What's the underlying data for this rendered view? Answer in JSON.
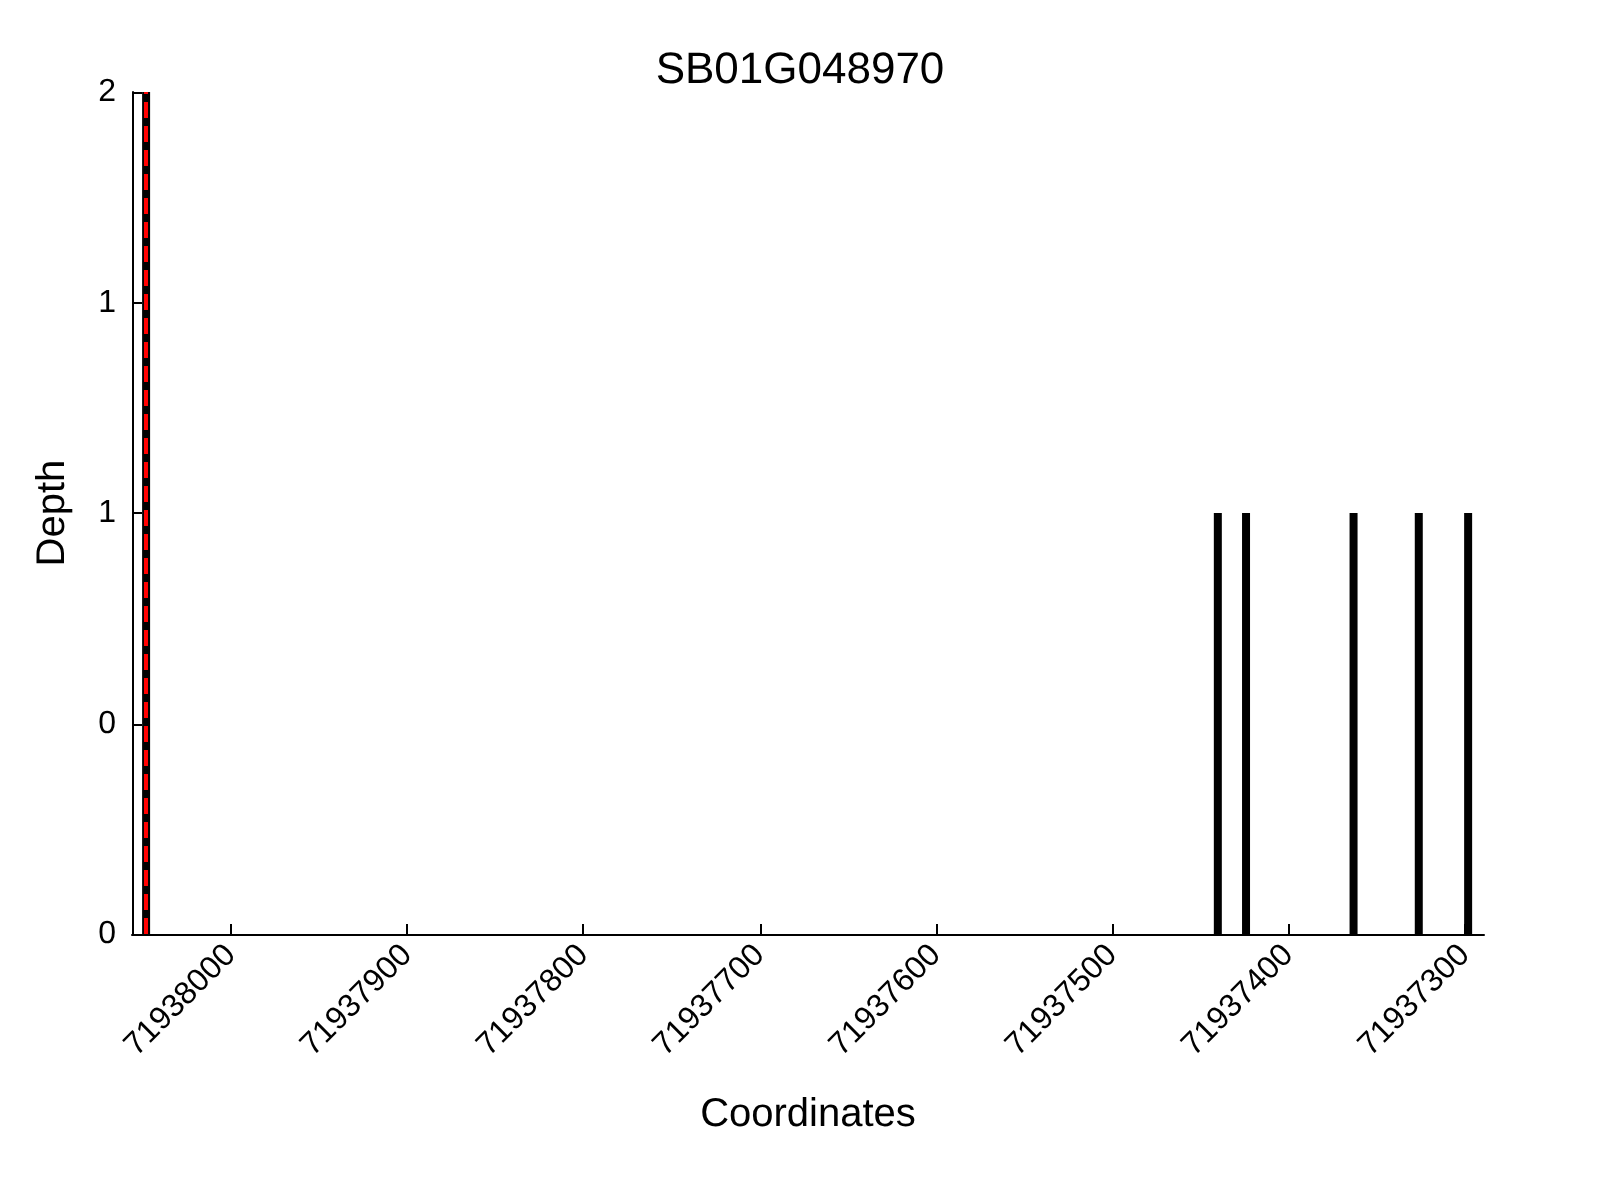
{
  "chart_data": {
    "type": "bar",
    "title": "SB01G048970",
    "xlabel": "Coordinates",
    "ylabel": "Depth",
    "x": [
      71938048,
      71937440,
      71937424,
      71937363,
      71937326,
      71937298
    ],
    "values": [
      2,
      1,
      1,
      1,
      1,
      1
    ],
    "color": "#000000",
    "xlim": [
      71938056,
      71937289
    ],
    "xticks": [
      71938000,
      71937900,
      71937800,
      71937700,
      71937600,
      71937500,
      71937400,
      71937300
    ],
    "ylim": [
      0,
      2
    ],
    "yticks": [
      {
        "value": 0,
        "label": "0"
      },
      {
        "value": 0.5,
        "label": "0"
      },
      {
        "value": 1,
        "label": "1"
      },
      {
        "value": 1.5,
        "label": "1"
      },
      {
        "value": 2,
        "label": "2"
      }
    ],
    "ref_lines": [
      {
        "axis": "x",
        "value": 71938048,
        "color": "#ff0000",
        "line_style": "dashed"
      }
    ]
  }
}
